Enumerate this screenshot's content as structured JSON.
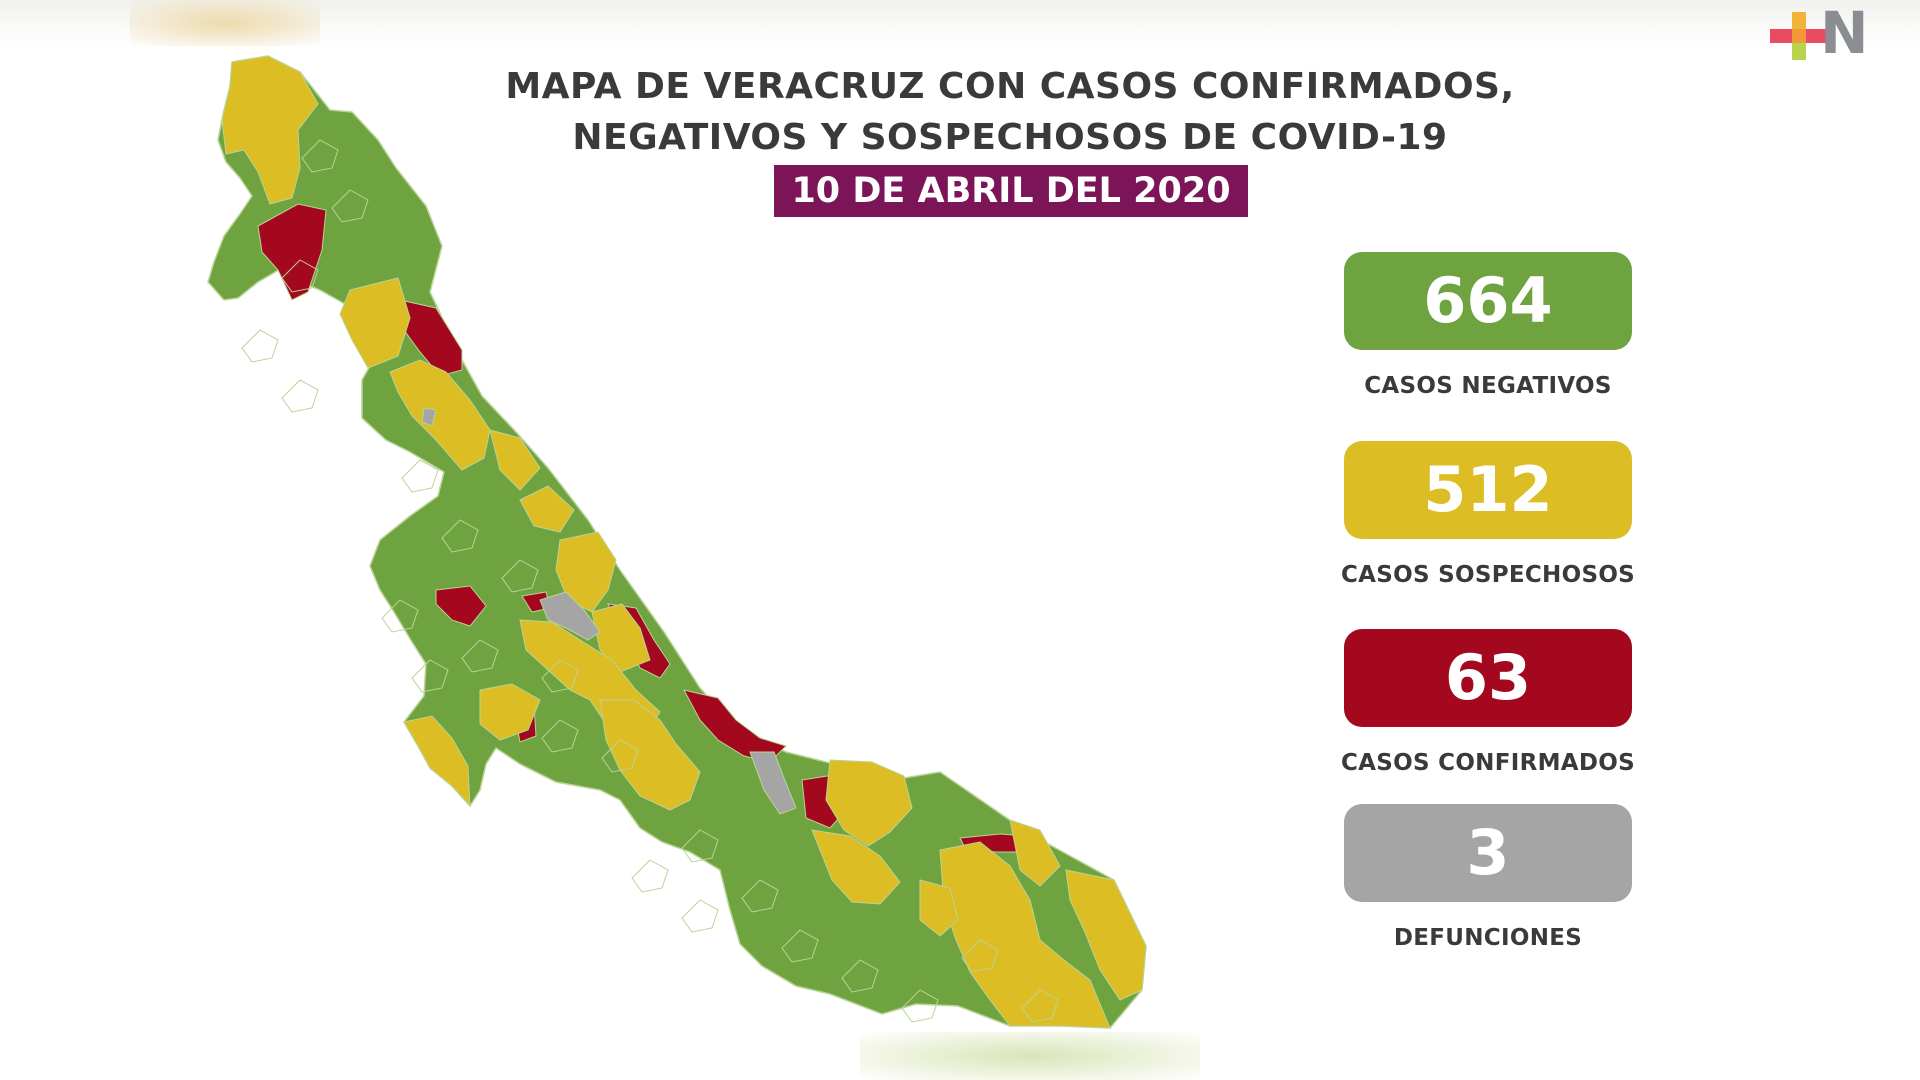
{
  "header": {
    "title_line1": "MAPA DE VERACRUZ CON CASOS CONFIRMADOS,",
    "title_line2": "NEGATIVOS Y SOSPECHOSOS DE COVID-19",
    "date": "10 DE ABRIL DEL 2020"
  },
  "logo": {
    "icon": "plus-icon",
    "letter": "N",
    "colors": [
      "#e94b62",
      "#f0b43a",
      "#b8d44a",
      "#8a8d91"
    ]
  },
  "stats": [
    {
      "value": "664",
      "label": "CASOS NEGATIVOS",
      "color": "#6ea33f"
    },
    {
      "value": "512",
      "label": "CASOS SOSPECHOSOS",
      "color": "#dcbd24"
    },
    {
      "value": "63",
      "label": "CASOS CONFIRMADOS",
      "color": "#a3081f"
    },
    {
      "value": "3",
      "label": "DEFUNCIONES",
      "color": "#a5a5a5"
    }
  ],
  "map": {
    "region": "Veracruz",
    "colors": {
      "negative": "#6ea33f",
      "suspect": "#dcbd24",
      "confirmed": "#a3081f",
      "death": "#a5a5a5",
      "border": "#b9d497"
    }
  }
}
